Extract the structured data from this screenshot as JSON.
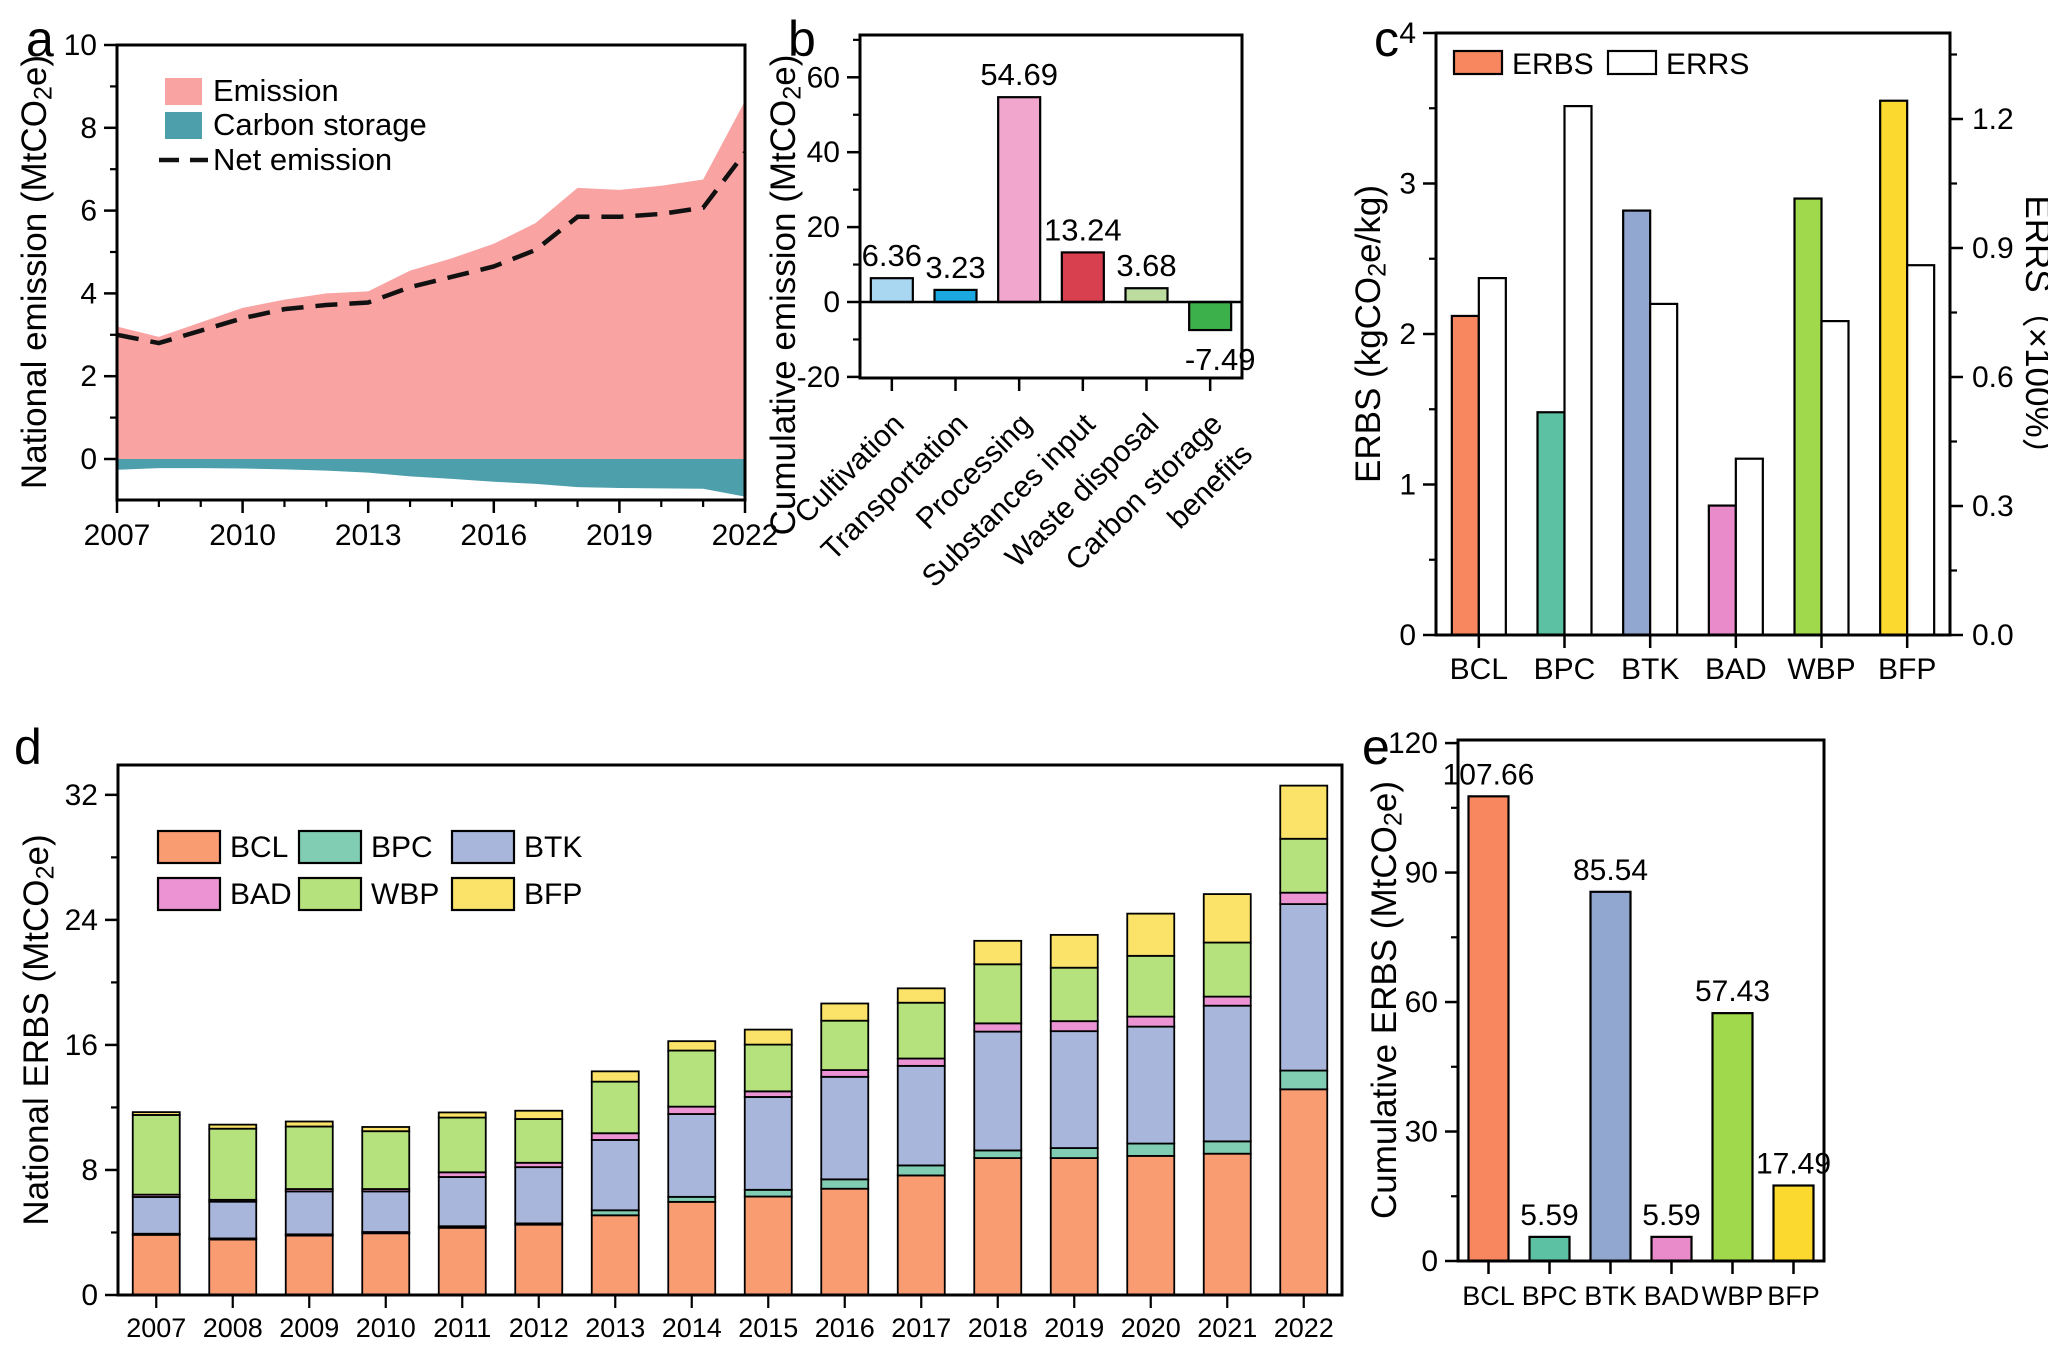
{
  "panels": {
    "a": "a",
    "b": "b",
    "c": "c",
    "d": "d",
    "e": "e"
  },
  "chart_data": [
    {
      "id": "a",
      "type": "area",
      "ylabel": "National emission (MtCO₂e)",
      "x": [
        2007,
        2008,
        2009,
        2010,
        2011,
        2012,
        2013,
        2014,
        2015,
        2016,
        2017,
        2018,
        2019,
        2020,
        2021,
        2022
      ],
      "xticks": [
        2007,
        2010,
        2013,
        2016,
        2019,
        2022
      ],
      "ylim": [
        -1,
        10
      ],
      "yticks": [
        0,
        2,
        4,
        6,
        8,
        10
      ],
      "yminor": [
        1,
        3,
        5,
        7,
        9
      ],
      "series": [
        {
          "name": "Emission",
          "type": "area",
          "color": "#F9A3A3",
          "values": [
            3.2,
            2.95,
            3.3,
            3.65,
            3.85,
            4.0,
            4.05,
            4.55,
            4.85,
            5.2,
            5.7,
            6.55,
            6.5,
            6.6,
            6.75,
            8.65
          ]
        },
        {
          "name": "Carbon storage",
          "type": "area",
          "color": "#4D9FAC",
          "values": [
            -0.26,
            -0.22,
            -0.22,
            -0.23,
            -0.25,
            -0.28,
            -0.33,
            -0.42,
            -0.48,
            -0.55,
            -0.6,
            -0.68,
            -0.7,
            -0.71,
            -0.72,
            -0.91
          ]
        },
        {
          "name": "Net emission",
          "type": "dashed-line",
          "color": "#111111",
          "values": [
            3.0,
            2.8,
            3.1,
            3.4,
            3.62,
            3.72,
            3.78,
            4.15,
            4.4,
            4.65,
            5.05,
            5.85,
            5.85,
            5.92,
            6.07,
            7.4
          ]
        }
      ]
    },
    {
      "id": "b",
      "type": "bar",
      "ylabel": "Cumulative emission (MtCO₂e)",
      "categories": [
        "Cultivation",
        "Transportation",
        "Processing",
        "Substances input",
        "Waste disposal",
        "Carbon storage\nbenefits"
      ],
      "values": [
        6.36,
        3.23,
        54.69,
        13.24,
        3.68,
        -7.49
      ],
      "labels": [
        "6.36",
        "3.23",
        "54.69",
        "13.24",
        "3.68",
        "-7.49"
      ],
      "colors": [
        "#A9D7F1",
        "#1BA7E0",
        "#F1A6CD",
        "#D8404F",
        "#BCDCA0",
        "#3CB14B"
      ],
      "ylim": [
        -20.3,
        71.5
      ],
      "yticks": [
        -20,
        0,
        20,
        40,
        60
      ],
      "yminor": [
        -10,
        10,
        30,
        50,
        70
      ]
    },
    {
      "id": "c",
      "type": "grouped-bar",
      "ylabel_left": "ERBS (kgCO₂e/kg)",
      "ylabel_right": "ERRS（×100%）",
      "categories": [
        "BCL",
        "BPC",
        "BTK",
        "BAD",
        "WBP",
        "BFP"
      ],
      "series": [
        {
          "name": "ERBS",
          "values": [
            2.12,
            1.48,
            2.82,
            0.86,
            2.9,
            3.55
          ],
          "colors": [
            "#F8875F",
            "#5BC1A2",
            "#92A7CF",
            "#E98BCB",
            "#A0D94B",
            "#FBD92F"
          ]
        },
        {
          "name": "ERRS",
          "values": [
            0.83,
            1.23,
            0.77,
            0.41,
            0.73,
            0.86
          ],
          "fill": "#FFFFFF"
        }
      ],
      "ylim_left": [
        0,
        4
      ],
      "yticks_left": [
        0,
        1,
        2,
        3,
        4
      ],
      "yminor_left": [
        0.5,
        1.5,
        2.5,
        3.5
      ],
      "ylim_right": [
        0,
        1.4
      ],
      "yticks_right": [
        "0.0",
        "0.3",
        "0.6",
        "0.9",
        "1.2"
      ],
      "yminor_right": [
        0.15,
        0.45,
        0.75,
        1.05,
        1.35
      ]
    },
    {
      "id": "d",
      "type": "stacked-bar",
      "ylabel": "National ERBS (MtCO₂e)",
      "categories": [
        "2007",
        "2008",
        "2009",
        "2010",
        "2011",
        "2012",
        "2013",
        "2014",
        "2015",
        "2016",
        "2017",
        "2018",
        "2019",
        "2020",
        "2021",
        "2022"
      ],
      "series": [
        {
          "name": "BCL",
          "color": "#FA9C72",
          "values": [
            3.85,
            3.55,
            3.8,
            3.95,
            4.3,
            4.5,
            5.1,
            5.96,
            6.3,
            6.8,
            7.65,
            8.76,
            8.76,
            8.9,
            9.04,
            13.16
          ]
        },
        {
          "name": "BPC",
          "color": "#80CDB3",
          "values": [
            0.07,
            0.07,
            0.08,
            0.08,
            0.1,
            0.08,
            0.32,
            0.32,
            0.43,
            0.6,
            0.64,
            0.49,
            0.64,
            0.79,
            0.79,
            1.2
          ]
        },
        {
          "name": "BTK",
          "color": "#A8B6DB",
          "values": [
            2.35,
            2.35,
            2.75,
            2.6,
            3.15,
            3.6,
            4.5,
            5.3,
            5.94,
            6.56,
            6.37,
            7.6,
            7.48,
            7.48,
            8.68,
            10.65
          ]
        },
        {
          "name": "BAD",
          "color": "#EC93D3",
          "values": [
            0.15,
            0.12,
            0.15,
            0.15,
            0.3,
            0.28,
            0.43,
            0.47,
            0.36,
            0.43,
            0.47,
            0.53,
            0.64,
            0.64,
            0.58,
            0.73
          ]
        },
        {
          "name": "WBP",
          "color": "#B6E27D",
          "values": [
            5.1,
            4.55,
            4.0,
            3.7,
            3.5,
            2.8,
            3.3,
            3.59,
            2.99,
            3.16,
            3.57,
            3.78,
            3.42,
            3.89,
            3.46,
            3.45
          ]
        },
        {
          "name": "BFP",
          "color": "#FBE268",
          "values": [
            0.18,
            0.26,
            0.32,
            0.27,
            0.33,
            0.53,
            0.66,
            0.6,
            0.96,
            1.1,
            0.92,
            1.5,
            2.1,
            2.7,
            3.1,
            3.4
          ]
        }
      ],
      "ylim": [
        0,
        33.9
      ],
      "yticks": [
        0,
        8,
        16,
        24,
        32
      ],
      "yminor": [
        4,
        12,
        20,
        28
      ]
    },
    {
      "id": "e",
      "type": "bar",
      "ylabel": "Cumulative ERBS (MtCO₂e)",
      "categories": [
        "BCL",
        "BPC",
        "BTK",
        "BAD",
        "WBP",
        "BFP"
      ],
      "values": [
        107.66,
        5.59,
        85.54,
        5.59,
        57.43,
        17.49
      ],
      "labels": [
        "107.66",
        "5.59",
        "85.54",
        "5.59",
        "57.43",
        "17.49"
      ],
      "colors": [
        "#F8875F",
        "#5BC1A2",
        "#92A7CF",
        "#E98BCB",
        "#A0D94B",
        "#FBD92F"
      ],
      "ylim": [
        0,
        120.7
      ],
      "yticks": [
        0,
        30,
        60,
        90,
        120
      ],
      "yminor": [
        15,
        45,
        75,
        105
      ]
    }
  ]
}
